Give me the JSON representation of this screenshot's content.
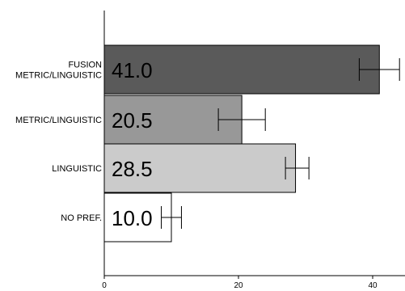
{
  "chart_data": {
    "type": "bar",
    "orientation": "horizontal",
    "categories": [
      "FUSION METRIC/LINGUISTIC",
      "METRIC/LINGUISTIC",
      "LINGUISTIC",
      "NO PREF."
    ],
    "category_lines": [
      [
        "FUSION",
        "METRIC/LINGUISTIC"
      ],
      [
        "METRIC/LINGUISTIC"
      ],
      [
        "LINGUISTIC"
      ],
      [
        "NO PREF."
      ]
    ],
    "values": [
      41.0,
      20.5,
      28.5,
      10.0
    ],
    "value_labels": [
      "41.0",
      "20.5",
      "28.5",
      "10.0"
    ],
    "error_bars": [
      [
        38.0,
        44.0
      ],
      [
        17.0,
        24.0
      ],
      [
        27.0,
        30.5
      ],
      [
        8.5,
        11.5
      ]
    ],
    "bar_colors": [
      "#5a5a5a",
      "#989898",
      "#cbcbcb",
      "#ffffff"
    ],
    "xlim": [
      0,
      45
    ],
    "xticks": [
      0,
      20,
      40
    ],
    "grid": false,
    "title": "",
    "xlabel": "",
    "ylabel": ""
  }
}
